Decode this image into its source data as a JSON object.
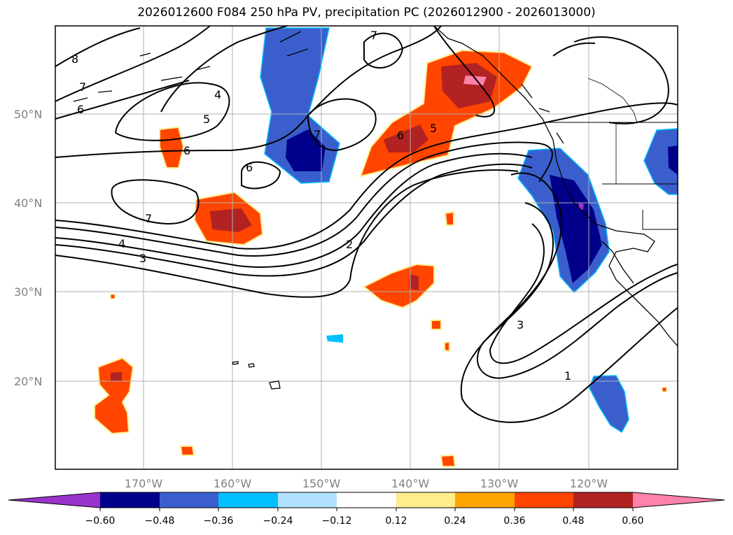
{
  "title": "2026012600 F084 250 hPa PV, precipitation PC (2026012900 - 2026013000)",
  "map": {
    "lat_labels": [
      "50°N",
      "40°N",
      "30°N",
      "20°N"
    ],
    "lon_labels": [
      "170°W",
      "160°W",
      "150°W",
      "140°W",
      "130°W",
      "120°W"
    ],
    "contour_labels": [
      "8",
      "7",
      "6",
      "4",
      "5",
      "6",
      "7",
      "6",
      "7",
      "4",
      "3",
      "2",
      "6",
      "5",
      "7",
      "3",
      "1"
    ]
  },
  "colorbar": {
    "ticks": [
      "−0.60",
      "−0.48",
      "−0.36",
      "−0.24",
      "−0.12",
      "0.12",
      "0.24",
      "0.36",
      "0.48",
      "0.60"
    ],
    "colors": {
      "under": "#9933cc",
      "bins": [
        "#00008b",
        "#3a5fcd",
        "#00bfff",
        "#b0e2ff",
        "#ffffff",
        "#ffec8b",
        "#ffa500",
        "#ff4500",
        "#b22222"
      ],
      "over": "#ff82ab"
    }
  }
}
